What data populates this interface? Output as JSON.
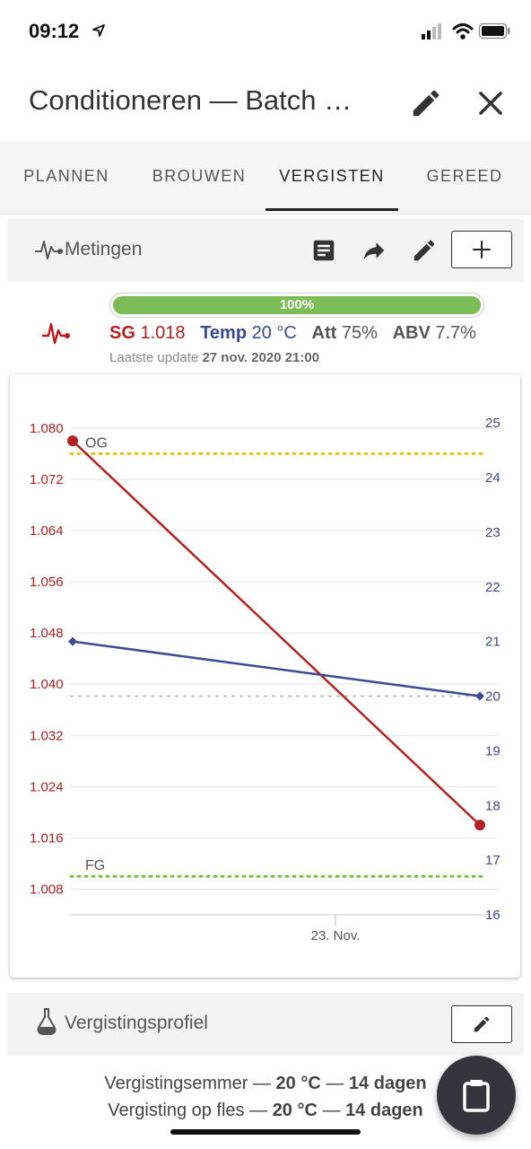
{
  "status_bar": {
    "time": "09:12",
    "icons": [
      "location-arrow-icon",
      "cellular-signal-icon",
      "wifi-icon",
      "battery-icon"
    ]
  },
  "header": {
    "title": "Conditioneren — Batch …",
    "edit_icon": "pencil-icon",
    "close_icon": "close-icon"
  },
  "tabs": [
    {
      "label": "PLANNEN",
      "active": false
    },
    {
      "label": "BROUWEN",
      "active": false
    },
    {
      "label": "VERGISTEN",
      "active": true
    },
    {
      "label": "GEREED",
      "active": false
    }
  ],
  "metingen": {
    "icon": "heartbeat-icon",
    "title": "Metingen",
    "toolbar_icons": [
      "list-icon",
      "share-icon",
      "pencil-icon",
      "plus-icon"
    ]
  },
  "progress": {
    "value": 1.0,
    "label": "100%"
  },
  "stats": {
    "sg_label": "SG",
    "sg_value": "1.018",
    "temp_label": "Temp",
    "temp_value": "20 °C",
    "att_label": "Att",
    "att_value": "75%",
    "abv_label": "ABV",
    "abv_value": "7.7%"
  },
  "last_update": {
    "label": "Laatste update",
    "value": "27 nov. 2020 21:00"
  },
  "chart_data": {
    "type": "line",
    "x_tick_labels": [
      "23. Nov."
    ],
    "y_left": {
      "ticks": [
        "1.008",
        "1.016",
        "1.024",
        "1.032",
        "1.040",
        "1.048",
        "1.056",
        "1.064",
        "1.072",
        "1.080"
      ],
      "range": [
        1.004,
        1.0825
      ],
      "color": "#b22222"
    },
    "y_right": {
      "ticks": [
        "16",
        "17",
        "18",
        "19",
        "20",
        "21",
        "22",
        "23",
        "24",
        "25"
      ],
      "range": [
        16,
        25.2
      ],
      "color": "#3c4a8f"
    },
    "series": [
      {
        "axis": "left",
        "color": "#b22222",
        "marker": "circle",
        "points": [
          {
            "x": "22. Nov.",
            "y": 1.078
          },
          {
            "x": "27. Nov.",
            "y": 1.018
          }
        ]
      },
      {
        "axis": "right",
        "color": "#3c4a8f",
        "marker": "diamond",
        "points": [
          {
            "x": "22. Nov.",
            "y": 21.0
          },
          {
            "x": "27. Nov.",
            "y": 20.0
          }
        ]
      }
    ],
    "reference_lines": [
      {
        "label": "OG",
        "value": 1.076,
        "axis": "left",
        "color": "#e6c21b"
      },
      {
        "label": "FG",
        "value": 1.01,
        "axis": "left",
        "color": "#7ac143"
      },
      {
        "label": "",
        "value": 20.0,
        "axis": "right",
        "color": "#bbbbbb"
      }
    ],
    "grid": true
  },
  "profile": {
    "icon": "flask-icon",
    "title": "Vergistingsprofiel",
    "edit_icon": "pencil-icon",
    "items": [
      {
        "name": "Vergistingsemmer",
        "sep1": " — ",
        "temp": "20 °C",
        "sep2": " — ",
        "duration": "14 dagen"
      },
      {
        "name": "Vergisting op fles",
        "sep1": " — ",
        "temp": "20 °C",
        "sep2": " — ",
        "duration": "14 dagen"
      }
    ]
  },
  "fab": {
    "icon": "clipboard-icon"
  }
}
